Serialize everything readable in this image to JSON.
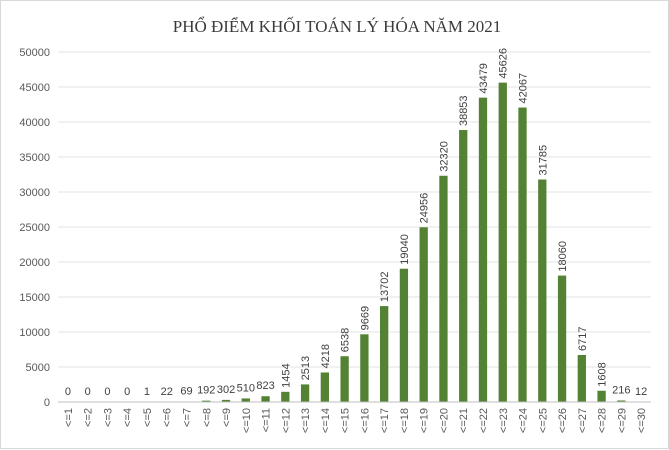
{
  "chart_data": {
    "type": "bar",
    "title": "PHỔ ĐIỂM KHỐI TOÁN LÝ HÓA NĂM 2021",
    "xlabel": "",
    "ylabel": "",
    "ylim": [
      0,
      50000
    ],
    "yticks": [
      0,
      5000,
      10000,
      15000,
      20000,
      25000,
      30000,
      35000,
      40000,
      45000,
      50000
    ],
    "grid": true,
    "legend": "none",
    "bar_color": "#548235",
    "categories": [
      "<=1",
      "<=2",
      "<=3",
      "<=4",
      "<=5",
      "<=6",
      "<=7",
      "<=8",
      "<=9",
      "<=10",
      "<=11",
      "<=12",
      "<=13",
      "<=14",
      "<=15",
      "<=16",
      "<=17",
      "<=18",
      "<=19",
      "<=20",
      "<=21",
      "<=22",
      "<=23",
      "<=24",
      "<=25",
      "<=26",
      "<=27",
      "<=28",
      "<=29",
      "<=30"
    ],
    "values": [
      0,
      0,
      0,
      0,
      1,
      22,
      69,
      192,
      302,
      510,
      823,
      1454,
      2513,
      4218,
      6538,
      9669,
      13702,
      19040,
      24956,
      32320,
      38853,
      43479,
      45626,
      42067,
      31785,
      18060,
      6717,
      1608,
      216,
      12
    ]
  }
}
